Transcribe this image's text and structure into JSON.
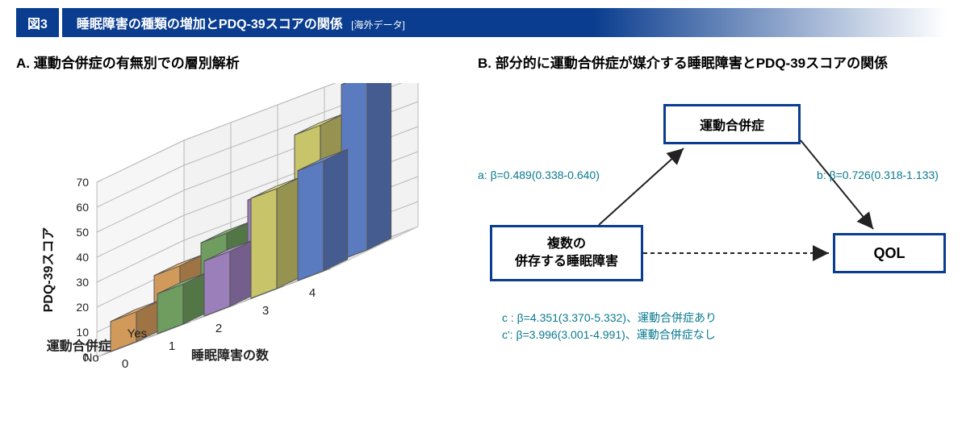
{
  "figure_label": "図3",
  "title": "睡眠障害の種類の増加とPDQ-39スコアの関係",
  "title_sub": "[海外データ]",
  "panelA": {
    "title": "A. 運動合併症の有無別での層別解析",
    "y_axis_label": "PDQ-39スコア",
    "z_axis_label": "運動合併症",
    "x_axis_label": "睡眠障害の数",
    "y_ticks": [
      0,
      10,
      20,
      30,
      40,
      50,
      60,
      70
    ],
    "z_ticks": [
      "Yes",
      "No"
    ],
    "x_ticks": [
      0,
      1,
      2,
      3,
      4
    ],
    "data_yes": [
      22,
      28,
      38,
      57,
      70
    ],
    "data_no": [
      12,
      16,
      22,
      40,
      44
    ],
    "colors": [
      "#d29a5a",
      "#6f9d5f",
      "#9a7fbb",
      "#c8c46a",
      "#5a7bc0"
    ],
    "floor_color": "#e8e8e8",
    "grid_color": "#b8b8b8",
    "tick_font": 14,
    "axis_label_font": 16
  },
  "panelB": {
    "title": "B. 部分的に運動合併症が媒介する睡眠障害とPDQ-39スコアの関係",
    "box_top": "運動合併症",
    "box_left": "複数の\n併存する睡眠障害",
    "box_right": "QOL",
    "label_a": "a: β=0.489(0.338-0.640)",
    "label_b": "b: β=0.726(0.318-1.133)",
    "label_c": "c : β=4.351(3.370-5.332)、運動合併症あり\nc': β=3.996(3.001-4.991)、運動合併症なし",
    "box_border": "#0a3d8f",
    "label_color": "#0a7a8f",
    "arrow_color": "#222222"
  }
}
